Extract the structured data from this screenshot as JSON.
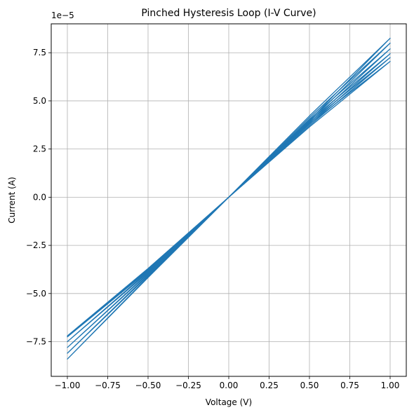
{
  "chart_data": {
    "type": "line",
    "title": "Pinched Hysteresis Loop (I-V Curve)",
    "xlabel": "Voltage (V)",
    "ylabel": "Current (A)",
    "y_offset_label": "1e−5",
    "xlim": [
      -1.1,
      1.1
    ],
    "ylim": [
      -9.3e-05,
      9e-05
    ],
    "xticks": [
      -1.0,
      -0.75,
      -0.5,
      -0.25,
      0.0,
      0.25,
      0.5,
      0.75,
      1.0
    ],
    "xtick_labels": [
      "−1.00",
      "−0.75",
      "−0.50",
      "−0.25",
      "0.00",
      "0.25",
      "0.50",
      "0.75",
      "1.00"
    ],
    "yticks": [
      -7.5e-05,
      -5e-05,
      -2.5e-05,
      0.0,
      2.5e-05,
      5e-05,
      7.5e-05
    ],
    "ytick_labels": [
      "−7.5",
      "−5.0",
      "−2.5",
      "0.0",
      "2.5",
      "5.0",
      "7.5"
    ],
    "grid": true,
    "color": "#1f77b4",
    "series": [
      {
        "x": [
          0.0,
          0.5,
          1.0,
          0.5,
          0.0,
          -0.5,
          -1.0,
          -0.5,
          0.0
        ],
        "y": [
          0.0,
          4.22e-05,
          8.25e-05,
          3.99e-05,
          0.0,
          -4.17e-05,
          -8.4e-05,
          -4.13e-05,
          0.0
        ]
      },
      {
        "x": [
          0.0,
          0.5,
          1.0,
          0.5,
          0.0,
          -0.5,
          -1.0,
          -0.5,
          0.0
        ],
        "y": [
          0.0,
          4.13e-05,
          8e-05,
          3.92e-05,
          0.0,
          -4.08e-05,
          -8.1e-05,
          -4.03e-05,
          0.0
        ]
      },
      {
        "x": [
          0.0,
          0.5,
          1.0,
          0.5,
          0.0,
          -0.5,
          -1.0,
          -0.5,
          0.0
        ],
        "y": [
          0.0,
          4.05e-05,
          7.7e-05,
          3.85e-05,
          0.0,
          -3.98e-05,
          -7.8e-05,
          -3.94e-05,
          0.0
        ]
      },
      {
        "x": [
          0.0,
          0.5,
          1.0,
          0.5,
          0.0,
          -0.5,
          -1.0,
          -0.5,
          0.0
        ],
        "y": [
          0.0,
          3.96e-05,
          7.45e-05,
          3.78e-05,
          0.0,
          -3.9e-05,
          -7.5e-05,
          -3.85e-05,
          0.0
        ]
      },
      {
        "x": [
          0.0,
          0.5,
          1.0,
          0.5,
          0.0,
          -0.5,
          -1.0,
          -0.5,
          0.0
        ],
        "y": [
          0.0,
          3.88e-05,
          7.25e-05,
          3.71e-05,
          0.0,
          -3.82e-05,
          -7.25e-05,
          -3.77e-05,
          0.0
        ]
      },
      {
        "x": [
          0.0,
          0.5,
          1.0,
          0.5,
          0.0,
          -0.5,
          -1.0,
          -0.5,
          0.0
        ],
        "y": [
          0.0,
          3.8e-05,
          7.05e-05,
          3.65e-05,
          0.0,
          -3.75e-05,
          -7.2e-05,
          -3.7e-05,
          0.0
        ]
      }
    ]
  }
}
